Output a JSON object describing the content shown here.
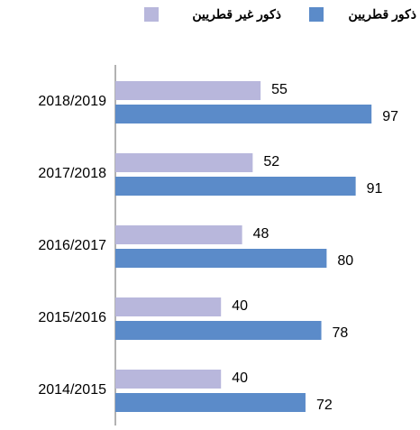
{
  "chart_data": {
    "type": "bar",
    "orientation": "horizontal",
    "categories": [
      "2018/2019",
      "2017/2018",
      "2016/2017",
      "2015/2016",
      "2014/2015"
    ],
    "series": [
      {
        "name": "ذكور قطريين",
        "color": "#5b8bc9",
        "values": [
          97,
          91,
          80,
          78,
          72
        ]
      },
      {
        "name": "ذكور غير قطريين",
        "color": "#b8b7dc",
        "values": [
          55,
          52,
          48,
          40,
          40
        ]
      }
    ],
    "xlim": [
      0,
      100
    ]
  }
}
